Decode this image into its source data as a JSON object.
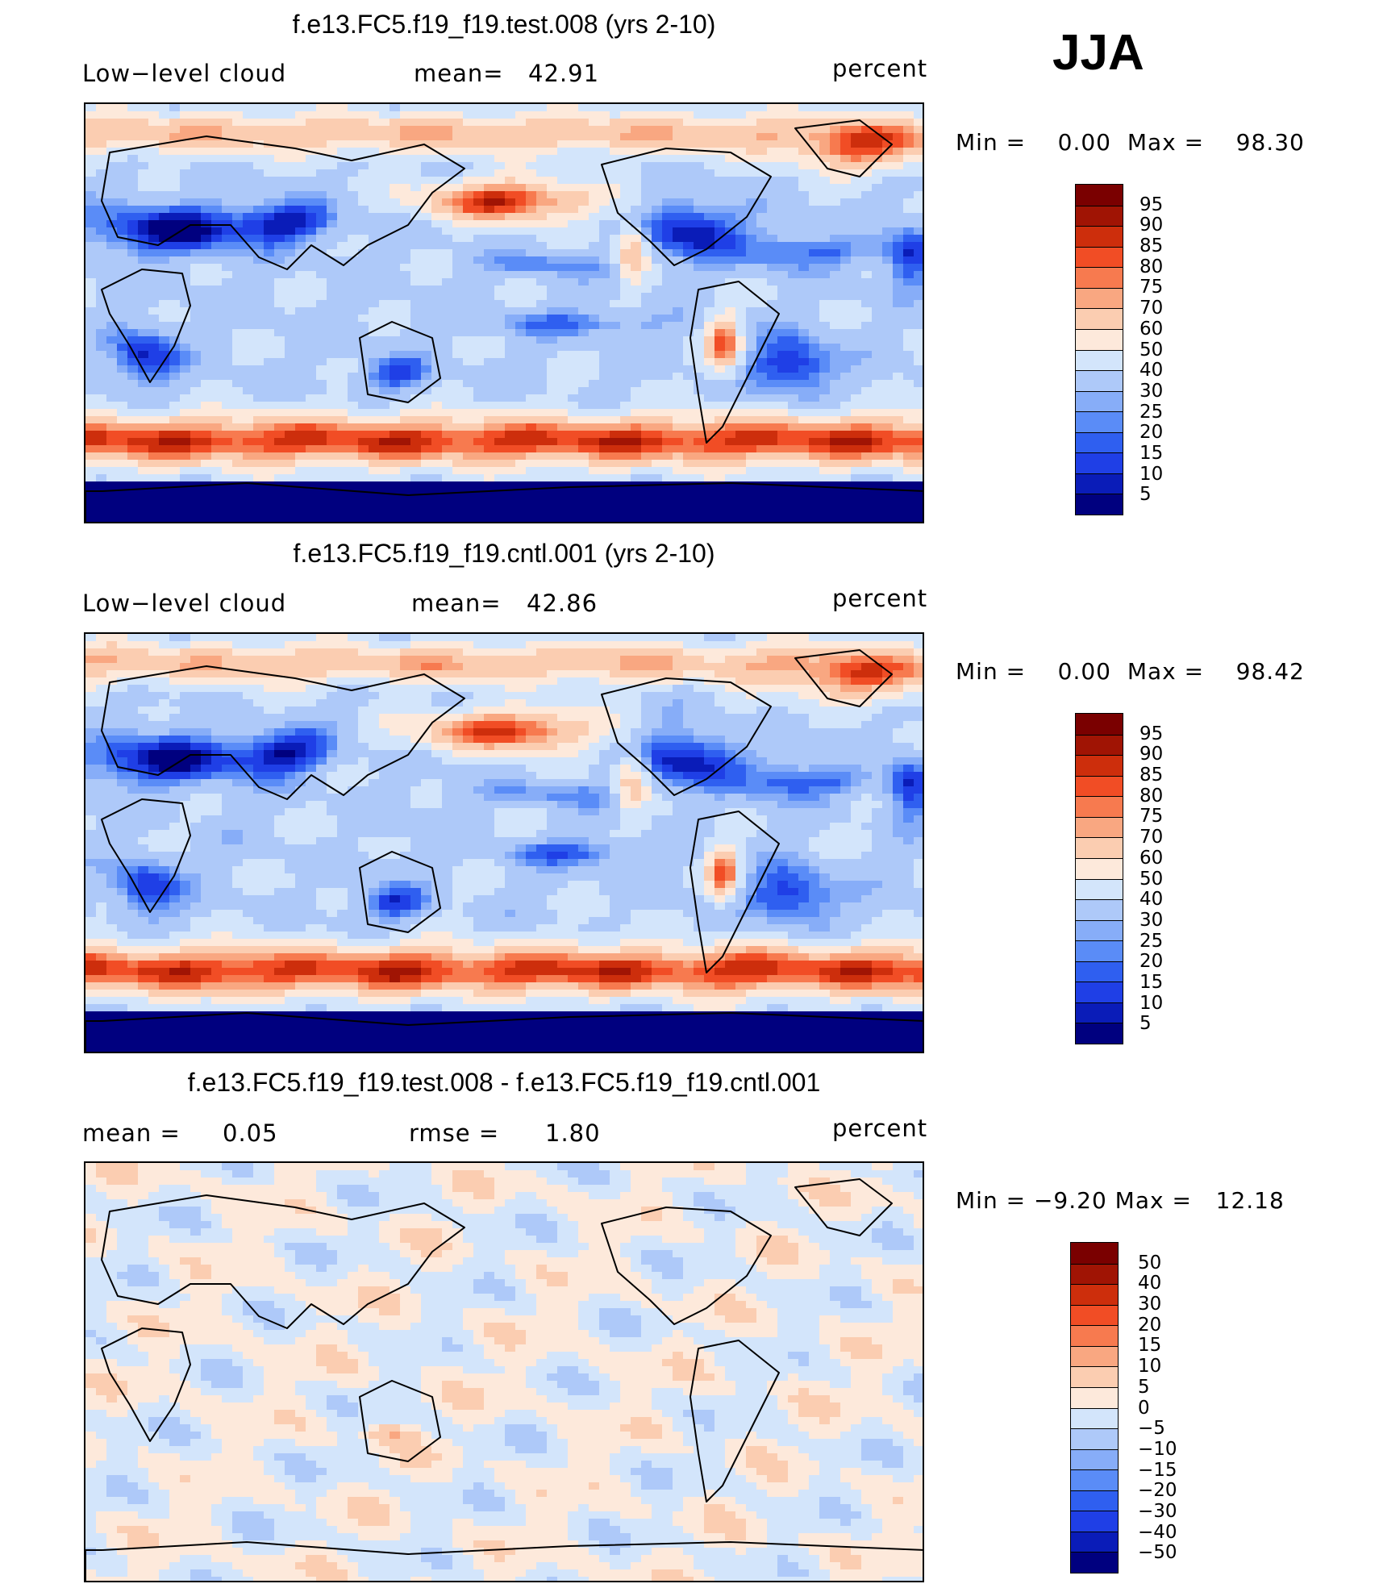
{
  "season": "JJA",
  "colors": {
    "sequential": [
      "#00007f",
      "#0a1cb8",
      "#1f3fe6",
      "#2f5ff0",
      "#5a8cf7",
      "#87adf8",
      "#aec9f9",
      "#d3e5fb",
      "#fde9db",
      "#fbcdb1",
      "#f9a781",
      "#f77a4f",
      "#f14d25",
      "#cd2e0c",
      "#a01404",
      "#7a0000"
    ],
    "diverging": [
      "#00007f",
      "#0a1cb8",
      "#1f3fe6",
      "#2f5ff0",
      "#5a8cf7",
      "#87adf8",
      "#aec9f9",
      "#d3e5fb",
      "#fde9db",
      "#fbcdb1",
      "#f9a781",
      "#f77a4f",
      "#f14d25",
      "#cd2e0c",
      "#a01404",
      "#7a0000"
    ]
  },
  "panels": [
    {
      "title": "f.e13.FC5.f19_f19.test.008 (yrs 2-10)",
      "left": "Low−level cloud",
      "mid_label": "mean=",
      "mid_value": "42.91",
      "units": "percent",
      "min_label": "Min =",
      "min_value": "0.00",
      "max_label": "Max =",
      "max_value": "98.30",
      "levels": [
        "95",
        "90",
        "85",
        "80",
        "75",
        "70",
        "60",
        "50",
        "40",
        "30",
        "25",
        "20",
        "15",
        "10",
        "5"
      ],
      "field": "test"
    },
    {
      "title": "f.e13.FC5.f19_f19.cntl.001 (yrs 2-10)",
      "left": "Low−level cloud",
      "mid_label": "mean=",
      "mid_value": "42.86",
      "units": "percent",
      "min_label": "Min =",
      "min_value": "0.00",
      "max_label": "Max =",
      "max_value": "98.42",
      "levels": [
        "95",
        "90",
        "85",
        "80",
        "75",
        "70",
        "60",
        "50",
        "40",
        "30",
        "25",
        "20",
        "15",
        "10",
        "5"
      ],
      "field": "cntl"
    },
    {
      "title": "f.e13.FC5.f19_f19.test.008 - f.e13.FC5.f19_f19.cntl.001",
      "left": "mean =",
      "left_value": "0.05",
      "mid_label": "rmse =",
      "mid_value": "1.80",
      "units": "percent",
      "min_label": "Min =",
      "min_value": "−9.20",
      "max_label": "Max =",
      "max_value": "12.18",
      "levels": [
        "50",
        "40",
        "30",
        "20",
        "15",
        "10",
        "5",
        "0",
        "−5",
        "−10",
        "−15",
        "−20",
        "−30",
        "−40",
        "−50"
      ],
      "field": "diff"
    }
  ]
}
